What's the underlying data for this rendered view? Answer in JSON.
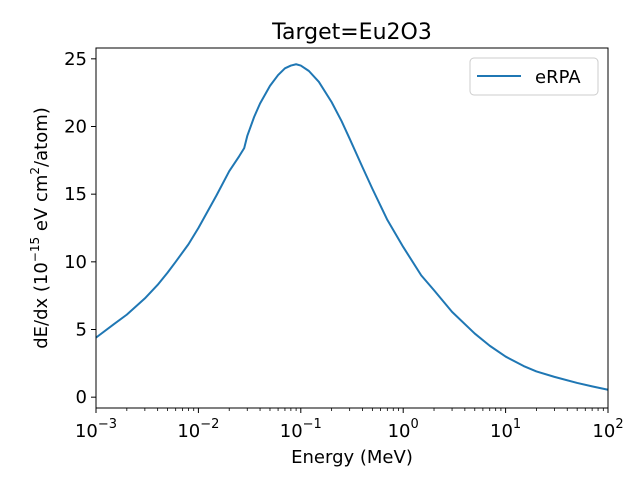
{
  "chart_data": {
    "type": "line",
    "title": "Target=Eu2O3",
    "xlabel": "Energy (MeV)",
    "ylabel": "dE/dx (10",
    "ylabel_exp": "−15",
    "ylabel_mid": " eV cm",
    "ylabel_exp2": "2",
    "ylabel_end": "/atom)",
    "xscale": "log",
    "xlim": [
      0.001,
      100
    ],
    "ylim": [
      -0.8,
      25.8
    ],
    "x_ticks": [
      {
        "value": 0.001,
        "base": "10",
        "exp": "−3"
      },
      {
        "value": 0.01,
        "base": "10",
        "exp": "−2"
      },
      {
        "value": 0.1,
        "base": "10",
        "exp": "−1"
      },
      {
        "value": 1,
        "base": "10",
        "exp": "0"
      },
      {
        "value": 10,
        "base": "10",
        "exp": "1"
      },
      {
        "value": 100,
        "base": "10",
        "exp": "2"
      }
    ],
    "y_ticks": [
      0,
      5,
      10,
      15,
      20,
      25
    ],
    "legend_position": "top-right",
    "grid": false,
    "series": [
      {
        "name": "eRPA",
        "color": "#1f77b4",
        "x": [
          0.001,
          0.0015,
          0.002,
          0.003,
          0.004,
          0.005,
          0.006,
          0.008,
          0.01,
          0.015,
          0.02,
          0.025,
          0.028,
          0.03,
          0.035,
          0.04,
          0.05,
          0.06,
          0.07,
          0.08,
          0.09,
          0.1,
          0.12,
          0.15,
          0.2,
          0.25,
          0.3,
          0.4,
          0.5,
          0.7,
          1,
          1.5,
          2,
          3,
          5,
          7,
          10,
          15,
          20,
          30,
          50,
          70,
          100
        ],
        "y": [
          4.4,
          5.4,
          6.1,
          7.3,
          8.3,
          9.2,
          10.0,
          11.3,
          12.5,
          14.9,
          16.7,
          17.8,
          18.4,
          19.3,
          20.7,
          21.7,
          23.0,
          23.8,
          24.3,
          24.5,
          24.6,
          24.5,
          24.1,
          23.3,
          21.8,
          20.4,
          19.1,
          17.0,
          15.4,
          13.1,
          11.1,
          9.0,
          7.9,
          6.3,
          4.7,
          3.8,
          3.0,
          2.3,
          1.9,
          1.5,
          1.05,
          0.8,
          0.55
        ]
      }
    ]
  }
}
